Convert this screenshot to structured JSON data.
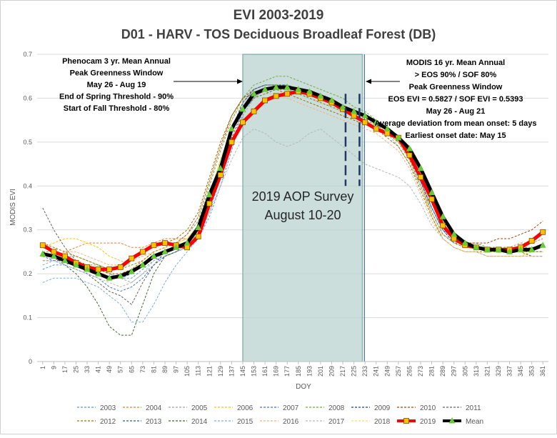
{
  "chart_data": {
    "type": "line",
    "title": "EVI 2003-2019",
    "subtitle": "D01 - HARV - TOS Deciduous Broadleaf Forest (DB)",
    "xlabel": "DOY",
    "ylabel": "MODIS EVI",
    "ylim": [
      0,
      0.7
    ],
    "yticks": [
      "0",
      "0.1",
      "0.2",
      "0.3",
      "0.4",
      "0.5",
      "0.6",
      "0.7"
    ],
    "x": [
      1,
      9,
      17,
      25,
      33,
      41,
      49,
      57,
      65,
      73,
      81,
      89,
      97,
      105,
      113,
      121,
      129,
      137,
      145,
      153,
      161,
      169,
      177,
      185,
      193,
      201,
      209,
      217,
      225,
      233,
      241,
      249,
      257,
      265,
      273,
      281,
      289,
      297,
      305,
      313,
      321,
      329,
      337,
      345,
      353,
      361
    ],
    "series": [
      {
        "name": "2003",
        "color": "#5b9bd5",
        "values": [
          0.21,
          0.22,
          0.22,
          0.23,
          0.22,
          0.21,
          0.2,
          0.19,
          0.19,
          0.21,
          0.23,
          0.24,
          0.25,
          0.26,
          0.28,
          0.33,
          0.4,
          0.48,
          0.57,
          0.6,
          0.62,
          0.62,
          0.62,
          0.61,
          0.6,
          0.59,
          0.58,
          0.57,
          0.56,
          0.55,
          0.54,
          0.52,
          0.5,
          0.46,
          0.41,
          0.35,
          0.3,
          0.28,
          0.27,
          0.26,
          0.26,
          0.25,
          0.25,
          0.25,
          0.25,
          0.25
        ]
      },
      {
        "name": "2004",
        "color": "#ed7d31",
        "values": [
          0.25,
          0.24,
          0.25,
          0.26,
          0.27,
          0.27,
          0.27,
          0.27,
          0.26,
          0.26,
          0.27,
          0.28,
          0.28,
          0.28,
          0.3,
          0.36,
          0.44,
          0.52,
          0.58,
          0.61,
          0.62,
          0.63,
          0.63,
          0.62,
          0.61,
          0.6,
          0.59,
          0.58,
          0.57,
          0.56,
          0.55,
          0.53,
          0.51,
          0.47,
          0.41,
          0.34,
          0.29,
          0.27,
          0.27,
          0.27,
          0.26,
          0.26,
          0.26,
          0.27,
          0.27,
          0.28
        ]
      },
      {
        "name": "2005",
        "color": "#a5a5a5",
        "values": [
          0.22,
          0.23,
          0.24,
          0.24,
          0.23,
          0.22,
          0.2,
          0.19,
          0.18,
          0.2,
          0.22,
          0.24,
          0.25,
          0.26,
          0.29,
          0.35,
          0.42,
          0.5,
          0.56,
          0.6,
          0.62,
          0.62,
          0.62,
          0.61,
          0.6,
          0.59,
          0.58,
          0.57,
          0.56,
          0.55,
          0.54,
          0.52,
          0.49,
          0.45,
          0.4,
          0.34,
          0.29,
          0.27,
          0.26,
          0.26,
          0.25,
          0.25,
          0.25,
          0.25,
          0.24,
          0.24
        ]
      },
      {
        "name": "2006",
        "color": "#ffc000",
        "values": [
          0.26,
          0.27,
          0.28,
          0.28,
          0.27,
          0.26,
          0.24,
          0.23,
          0.22,
          0.23,
          0.25,
          0.26,
          0.27,
          0.28,
          0.31,
          0.38,
          0.46,
          0.53,
          0.58,
          0.61,
          0.62,
          0.63,
          0.62,
          0.61,
          0.6,
          0.59,
          0.58,
          0.57,
          0.56,
          0.55,
          0.54,
          0.52,
          0.5,
          0.46,
          0.4,
          0.33,
          0.28,
          0.26,
          0.25,
          0.25,
          0.24,
          0.24,
          0.24,
          0.24,
          0.25,
          0.25
        ]
      },
      {
        "name": "2007",
        "color": "#4472c4",
        "values": [
          0.24,
          0.23,
          0.22,
          0.21,
          0.2,
          0.19,
          0.17,
          0.16,
          0.17,
          0.19,
          0.22,
          0.24,
          0.25,
          0.27,
          0.3,
          0.37,
          0.45,
          0.53,
          0.59,
          0.62,
          0.63,
          0.63,
          0.63,
          0.62,
          0.61,
          0.6,
          0.59,
          0.58,
          0.57,
          0.56,
          0.55,
          0.53,
          0.51,
          0.47,
          0.41,
          0.35,
          0.3,
          0.27,
          0.26,
          0.26,
          0.25,
          0.25,
          0.25,
          0.25,
          0.25,
          0.25
        ]
      },
      {
        "name": "2008",
        "color": "#70ad47",
        "values": [
          0.25,
          0.25,
          0.24,
          0.23,
          0.22,
          0.22,
          0.21,
          0.21,
          0.22,
          0.23,
          0.25,
          0.26,
          0.27,
          0.29,
          0.32,
          0.4,
          0.48,
          0.55,
          0.6,
          0.63,
          0.64,
          0.65,
          0.65,
          0.64,
          0.63,
          0.62,
          0.61,
          0.6,
          0.58,
          0.57,
          0.55,
          0.53,
          0.51,
          0.48,
          0.42,
          0.36,
          0.31,
          0.28,
          0.27,
          0.27,
          0.26,
          0.26,
          0.26,
          0.26,
          0.26,
          0.26
        ]
      },
      {
        "name": "2009",
        "color": "#264478",
        "values": [
          0.23,
          0.23,
          0.23,
          0.22,
          0.22,
          0.21,
          0.2,
          0.2,
          0.21,
          0.22,
          0.24,
          0.25,
          0.26,
          0.27,
          0.3,
          0.36,
          0.44,
          0.52,
          0.58,
          0.61,
          0.62,
          0.62,
          0.62,
          0.61,
          0.6,
          0.59,
          0.58,
          0.57,
          0.56,
          0.55,
          0.54,
          0.52,
          0.5,
          0.46,
          0.4,
          0.34,
          0.29,
          0.27,
          0.26,
          0.26,
          0.25,
          0.25,
          0.25,
          0.25,
          0.25,
          0.25
        ]
      },
      {
        "name": "2010",
        "color": "#9e480e",
        "values": [
          0.26,
          0.25,
          0.24,
          0.23,
          0.22,
          0.21,
          0.2,
          0.2,
          0.21,
          0.23,
          0.25,
          0.26,
          0.27,
          0.29,
          0.33,
          0.41,
          0.49,
          0.56,
          0.6,
          0.62,
          0.63,
          0.63,
          0.62,
          0.61,
          0.6,
          0.59,
          0.58,
          0.57,
          0.56,
          0.55,
          0.54,
          0.52,
          0.5,
          0.46,
          0.4,
          0.34,
          0.29,
          0.27,
          0.27,
          0.27,
          0.27,
          0.28,
          0.28,
          0.29,
          0.3,
          0.32
        ]
      },
      {
        "name": "2011",
        "color": "#636363",
        "values": [
          0.35,
          0.3,
          0.26,
          0.23,
          0.2,
          0.18,
          0.16,
          0.15,
          0.13,
          0.18,
          0.22,
          0.25,
          0.26,
          0.27,
          0.29,
          0.35,
          0.43,
          0.51,
          0.57,
          0.6,
          0.61,
          0.62,
          0.62,
          0.61,
          0.6,
          0.59,
          0.58,
          0.57,
          0.56,
          0.55,
          0.54,
          0.52,
          0.5,
          0.46,
          0.4,
          0.34,
          0.29,
          0.27,
          0.26,
          0.26,
          0.25,
          0.25,
          0.25,
          0.25,
          0.25,
          0.25
        ]
      },
      {
        "name": "2012",
        "color": "#997300",
        "values": [
          0.27,
          0.26,
          0.25,
          0.24,
          0.23,
          0.22,
          0.21,
          0.22,
          0.23,
          0.25,
          0.26,
          0.27,
          0.28,
          0.3,
          0.34,
          0.42,
          0.5,
          0.56,
          0.6,
          0.61,
          0.62,
          0.62,
          0.61,
          0.6,
          0.59,
          0.58,
          0.57,
          0.56,
          0.55,
          0.54,
          0.53,
          0.51,
          0.49,
          0.45,
          0.39,
          0.33,
          0.28,
          0.26,
          0.25,
          0.25,
          0.25,
          0.25,
          0.25,
          0.25,
          0.24,
          0.24
        ]
      },
      {
        "name": "2013",
        "color": "#255e91",
        "values": [
          0.24,
          0.24,
          0.23,
          0.22,
          0.21,
          0.2,
          0.19,
          0.19,
          0.2,
          0.22,
          0.24,
          0.25,
          0.26,
          0.27,
          0.3,
          0.37,
          0.45,
          0.53,
          0.59,
          0.62,
          0.63,
          0.63,
          0.63,
          0.62,
          0.61,
          0.6,
          0.59,
          0.58,
          0.57,
          0.56,
          0.55,
          0.53,
          0.51,
          0.47,
          0.41,
          0.35,
          0.3,
          0.27,
          0.26,
          0.26,
          0.25,
          0.25,
          0.25,
          0.25,
          0.25,
          0.25
        ]
      },
      {
        "name": "2014",
        "color": "#43682b",
        "values": [
          0.25,
          0.24,
          0.22,
          0.2,
          0.17,
          0.13,
          0.08,
          0.06,
          0.06,
          0.13,
          0.2,
          0.24,
          0.25,
          0.27,
          0.3,
          0.37,
          0.45,
          0.53,
          0.58,
          0.61,
          0.62,
          0.62,
          0.62,
          0.61,
          0.6,
          0.59,
          0.58,
          0.57,
          0.56,
          0.55,
          0.54,
          0.52,
          0.5,
          0.46,
          0.4,
          0.34,
          0.29,
          0.27,
          0.26,
          0.26,
          0.25,
          0.25,
          0.25,
          0.25,
          0.25,
          0.25
        ]
      },
      {
        "name": "2015",
        "color": "#7cafdd",
        "values": [
          0.18,
          0.19,
          0.19,
          0.19,
          0.18,
          0.17,
          0.15,
          0.13,
          0.09,
          0.09,
          0.13,
          0.18,
          0.22,
          0.25,
          0.28,
          0.34,
          0.42,
          0.5,
          0.57,
          0.61,
          0.62,
          0.62,
          0.62,
          0.61,
          0.6,
          0.59,
          0.58,
          0.57,
          0.56,
          0.55,
          0.54,
          0.52,
          0.5,
          0.46,
          0.4,
          0.34,
          0.29,
          0.27,
          0.26,
          0.26,
          0.25,
          0.25,
          0.25,
          0.25,
          0.25,
          0.25
        ]
      },
      {
        "name": "2016",
        "color": "#f4b183",
        "values": [
          0.24,
          0.24,
          0.25,
          0.25,
          0.24,
          0.23,
          0.22,
          0.22,
          0.23,
          0.24,
          0.25,
          0.26,
          0.27,
          0.29,
          0.33,
          0.41,
          0.49,
          0.55,
          0.59,
          0.61,
          0.61,
          0.61,
          0.6,
          0.59,
          0.58,
          0.57,
          0.56,
          0.55,
          0.54,
          0.53,
          0.52,
          0.5,
          0.48,
          0.44,
          0.38,
          0.32,
          0.28,
          0.26,
          0.25,
          0.25,
          0.24,
          0.24,
          0.24,
          0.24,
          0.24,
          0.24
        ]
      },
      {
        "name": "2017",
        "color": "#b7b7b7",
        "values": [
          0.23,
          0.23,
          0.22,
          0.21,
          0.2,
          0.19,
          0.18,
          0.17,
          0.18,
          0.2,
          0.23,
          0.25,
          0.26,
          0.27,
          0.29,
          0.34,
          0.4,
          0.46,
          0.51,
          0.53,
          0.52,
          0.5,
          0.49,
          0.5,
          0.52,
          0.53,
          0.51,
          0.49,
          0.47,
          0.45,
          0.44,
          0.43,
          0.42,
          0.4,
          0.36,
          0.31,
          0.28,
          0.26,
          0.25,
          0.25,
          0.24,
          0.24,
          0.24,
          0.24,
          0.24,
          0.24
        ]
      },
      {
        "name": "2018",
        "color": "#ffd966",
        "values": [
          0.24,
          0.24,
          0.24,
          0.23,
          0.22,
          0.21,
          0.2,
          0.2,
          0.21,
          0.23,
          0.25,
          0.26,
          0.27,
          0.28,
          0.31,
          0.38,
          0.46,
          0.53,
          0.58,
          0.61,
          0.62,
          0.62,
          0.62,
          0.61,
          0.6,
          0.59,
          0.58,
          0.57,
          0.56,
          0.55,
          0.54,
          0.52,
          0.5,
          0.46,
          0.4,
          0.34,
          0.29,
          0.27,
          0.26,
          0.26,
          0.25,
          0.25,
          0.25,
          0.25,
          0.25,
          0.25
        ]
      },
      {
        "name": "2019",
        "color": "#ff0000",
        "marker": "square",
        "marker_fill": "#ffc000",
        "bold": true,
        "values": [
          0.265,
          0.25,
          0.24,
          0.225,
          0.215,
          0.21,
          0.21,
          0.215,
          0.235,
          0.25,
          0.265,
          0.27,
          0.265,
          0.26,
          0.285,
          0.36,
          0.425,
          0.5,
          0.545,
          0.57,
          0.595,
          0.605,
          0.61,
          0.615,
          0.61,
          0.6,
          0.59,
          0.575,
          0.56,
          0.545,
          0.53,
          0.52,
          0.51,
          0.47,
          0.42,
          0.37,
          0.31,
          0.28,
          0.265,
          0.26,
          0.255,
          0.255,
          0.255,
          0.26,
          0.275,
          0.295
        ]
      },
      {
        "name": "Mean",
        "color": "#000000",
        "marker": "triangle",
        "marker_fill": "#66cc33",
        "bold": true,
        "values": [
          0.245,
          0.24,
          0.23,
          0.22,
          0.21,
          0.2,
          0.19,
          0.195,
          0.205,
          0.22,
          0.24,
          0.25,
          0.26,
          0.27,
          0.305,
          0.38,
          0.44,
          0.53,
          0.575,
          0.61,
          0.62,
          0.625,
          0.625,
          0.62,
          0.615,
          0.605,
          0.595,
          0.58,
          0.57,
          0.56,
          0.545,
          0.53,
          0.51,
          0.485,
          0.44,
          0.385,
          0.33,
          0.29,
          0.27,
          0.26,
          0.255,
          0.255,
          0.25,
          0.255,
          0.255,
          0.265
        ]
      }
    ],
    "shaded_window": {
      "x_start": 145,
      "x_end": 231,
      "color": "#b9d3cf"
    },
    "dashed_markers": [
      219,
      229
    ],
    "annotations": {
      "left": [
        "Phenocam 3 yr. Mean Annual",
        "Peak Greenness Window",
        "May 26 - Aug 19",
        "End of Spring Threshold - 90%",
        "Start of Fall Threshold - 80%"
      ],
      "right": [
        "MODIS 16 yr. Mean Annual",
        "> EOS 90% / SOF 80%",
        "Peak Greenness Window",
        "EOS EVI = 0.5827 / SOF EVI = 0.5393",
        "May 26 - Aug 21",
        "Average deviation from mean onset: 5 days",
        "Earliest onset date: May 15"
      ],
      "survey": [
        "2019 AOP Survey",
        "August 10-20"
      ]
    },
    "legend": {
      "position": "bottom"
    }
  }
}
